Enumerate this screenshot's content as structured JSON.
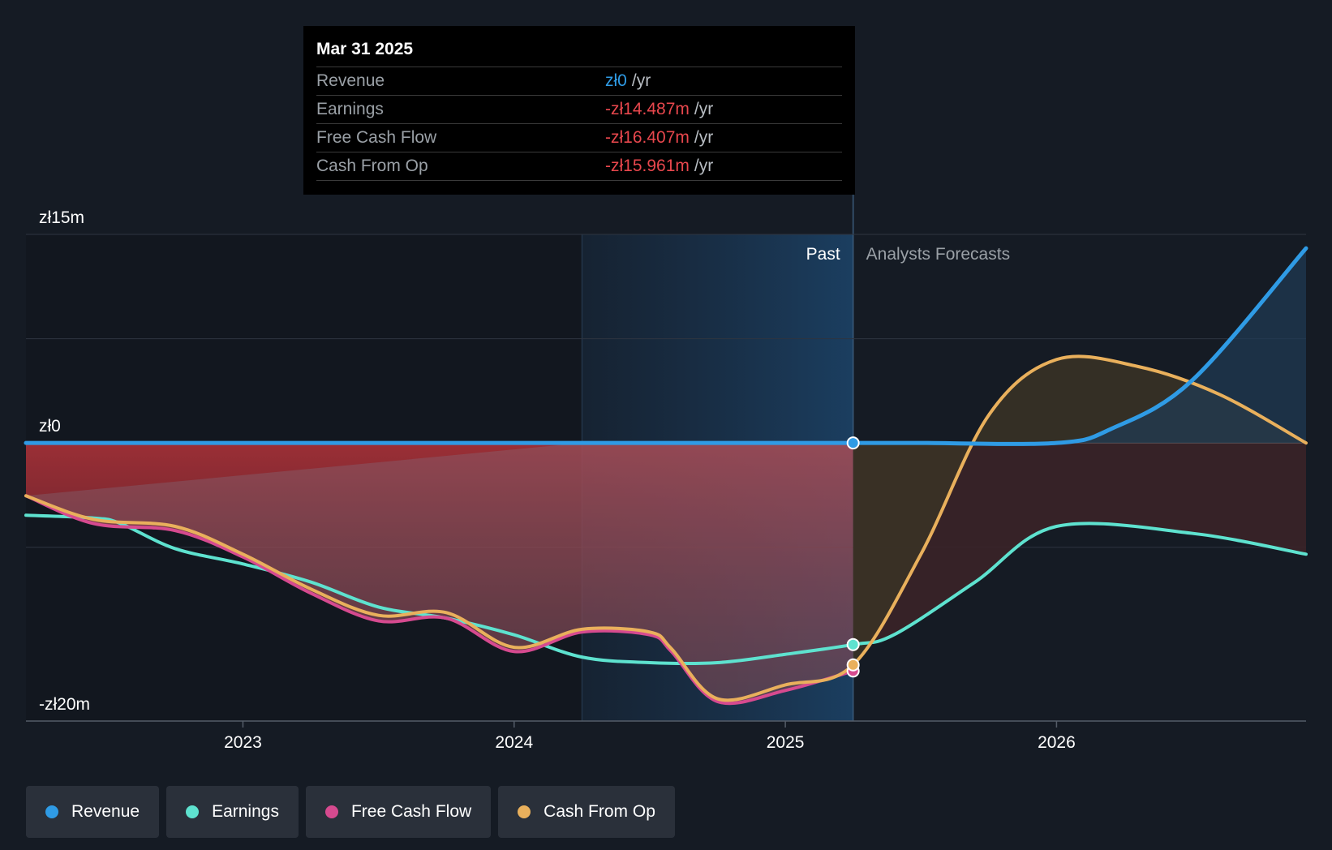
{
  "chart_data": {
    "type": "line",
    "y_unit": "zł m",
    "ylim": [
      -20,
      15
    ],
    "y_ticks": [
      {
        "value": 15,
        "label": "zł15m"
      },
      {
        "value": 0,
        "label": "zł0"
      },
      {
        "value": -20,
        "label": "-zł20m"
      }
    ],
    "xlim": [
      2022.2,
      2026.92
    ],
    "x_ticks": [
      {
        "value": 2023,
        "label": "2023"
      },
      {
        "value": 2024,
        "label": "2024"
      },
      {
        "value": 2025,
        "label": "2025"
      },
      {
        "value": 2026,
        "label": "2026"
      }
    ],
    "past_label": "Past",
    "forecast_label": "Analysts Forecasts",
    "past_end": 2025.25,
    "highlight_start": 2024.25,
    "series": [
      {
        "name": "Revenue",
        "color": "#2f9be5",
        "x": [
          2022.2,
          2023.0,
          2024.0,
          2025.0,
          2025.25,
          2025.5,
          2026.0,
          2026.2,
          2026.5,
          2026.92
        ],
        "values": [
          0,
          0,
          0,
          0,
          0,
          0,
          0,
          1.0,
          4.5,
          14
        ]
      },
      {
        "name": "Earnings",
        "color": "#5ee2cf",
        "x": [
          2022.2,
          2022.45,
          2022.55,
          2022.75,
          2023.0,
          2023.25,
          2023.5,
          2023.75,
          2024.0,
          2024.25,
          2024.5,
          2024.75,
          2025.0,
          2025.25,
          2025.4,
          2025.7,
          2026.0,
          2026.5,
          2026.92
        ],
        "values": [
          -5.2,
          -5.4,
          -5.8,
          -7.6,
          -8.7,
          -10.0,
          -11.8,
          -12.6,
          -13.8,
          -15.4,
          -15.8,
          -15.8,
          -15.2,
          -14.5,
          -13.8,
          -10.0,
          -6.0,
          -6.5,
          -8.0
        ]
      },
      {
        "name": "Free Cash Flow",
        "color": "#d64a8f",
        "x": [
          2022.2,
          2022.45,
          2022.75,
          2023.0,
          2023.25,
          2023.5,
          2023.75,
          2024.0,
          2024.25,
          2024.5,
          2024.58,
          2024.75,
          2025.0,
          2025.25
        ],
        "values": [
          -3.8,
          -5.8,
          -6.3,
          -8.2,
          -10.8,
          -12.8,
          -12.6,
          -15.0,
          -13.6,
          -13.8,
          -15.0,
          -18.6,
          -17.8,
          -16.4
        ]
      },
      {
        "name": "Cash From Op",
        "color": "#e9b05c",
        "x": [
          2022.2,
          2022.45,
          2022.75,
          2023.0,
          2023.25,
          2023.5,
          2023.75,
          2024.0,
          2024.25,
          2024.5,
          2024.58,
          2024.75,
          2025.0,
          2025.25,
          2025.5,
          2025.75,
          2026.0,
          2026.3,
          2026.6,
          2026.92
        ],
        "values": [
          -3.8,
          -5.5,
          -6.0,
          -8.0,
          -10.5,
          -12.4,
          -12.2,
          -14.7,
          -13.4,
          -13.6,
          -14.8,
          -18.4,
          -17.4,
          -15.96,
          -8.0,
          2.0,
          6.0,
          5.5,
          3.5,
          0
        ]
      }
    ]
  },
  "tooltip": {
    "date": "Mar 31 2025",
    "rows": [
      {
        "label": "Revenue",
        "value": "zł0",
        "unit": "/yr",
        "color": "#2f9be5"
      },
      {
        "label": "Earnings",
        "value": "-zł14.487m",
        "unit": "/yr",
        "color": "#e8474d"
      },
      {
        "label": "Free Cash Flow",
        "value": "-zł16.407m",
        "unit": "/yr",
        "color": "#e8474d"
      },
      {
        "label": "Cash From Op",
        "value": "-zł15.961m",
        "unit": "/yr",
        "color": "#e8474d"
      }
    ]
  },
  "legend": [
    {
      "label": "Revenue",
      "color": "#2f9be5"
    },
    {
      "label": "Earnings",
      "color": "#5ee2cf"
    },
    {
      "label": "Free Cash Flow",
      "color": "#d64a8f"
    },
    {
      "label": "Cash From Op",
      "color": "#e9b05c"
    }
  ]
}
